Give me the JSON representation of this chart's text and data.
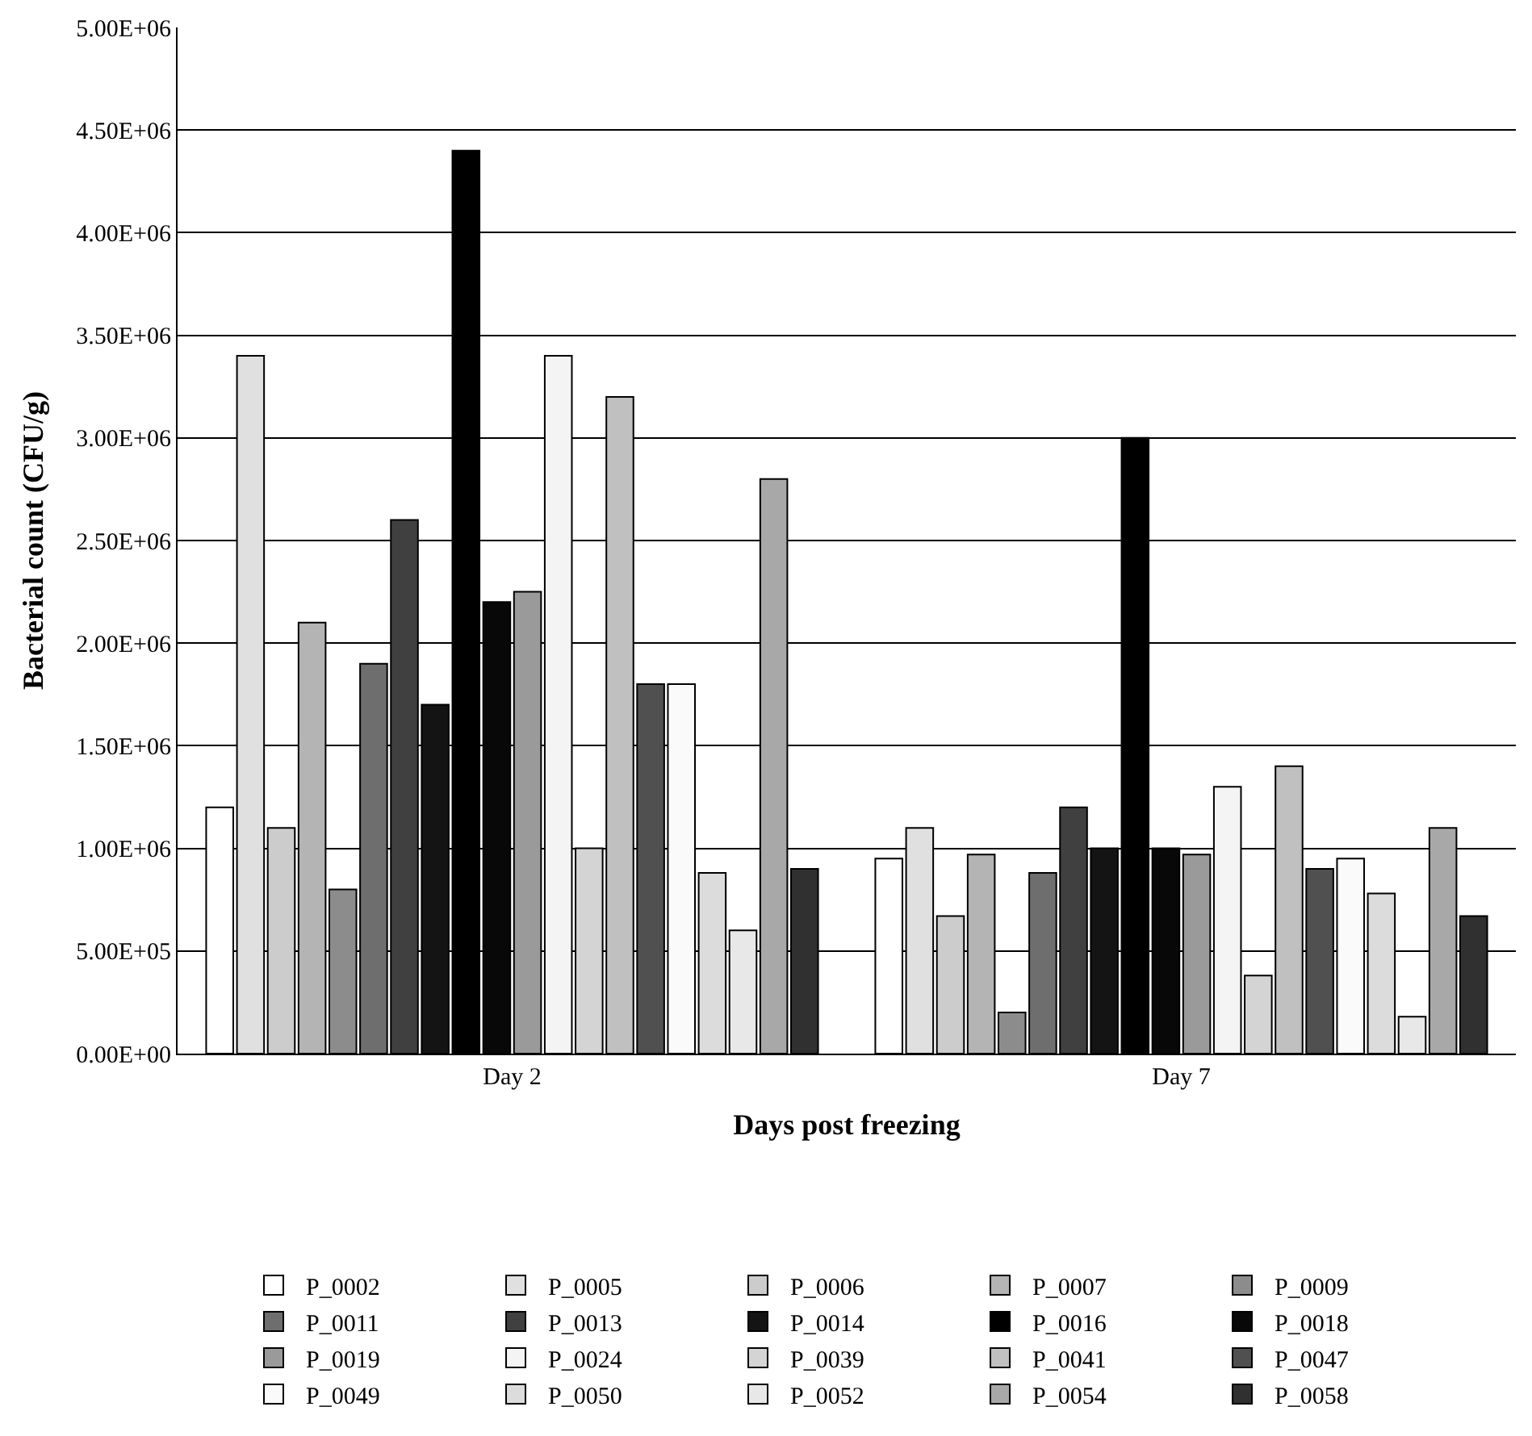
{
  "chart_data": {
    "type": "bar",
    "xlabel": "Days post freezing",
    "ylabel": "Bacterial count (CFU/g)",
    "categories": [
      "Day 2",
      "Day 7"
    ],
    "series": [
      {
        "name": "P_0002",
        "color": "#ffffff",
        "values": [
          1200000,
          950000
        ]
      },
      {
        "name": "P_0005",
        "color": "#e0e0e0",
        "values": [
          3400000,
          1100000
        ]
      },
      {
        "name": "P_0006",
        "color": "#cccccc",
        "values": [
          1100000,
          670000
        ]
      },
      {
        "name": "P_0007",
        "color": "#b4b4b4",
        "values": [
          2100000,
          970000
        ]
      },
      {
        "name": "P_0009",
        "color": "#8c8c8c",
        "values": [
          800000,
          200000
        ]
      },
      {
        "name": "P_0011",
        "color": "#6e6e6e",
        "values": [
          1900000,
          880000
        ]
      },
      {
        "name": "P_0013",
        "color": "#404040",
        "values": [
          2600000,
          1200000
        ]
      },
      {
        "name": "P_0014",
        "color": "#141414",
        "values": [
          1700000,
          1000000
        ]
      },
      {
        "name": "P_0016",
        "color": "#000000",
        "values": [
          4400000,
          3000000
        ]
      },
      {
        "name": "P_0018",
        "color": "#080808",
        "values": [
          2200000,
          1000000
        ]
      },
      {
        "name": "P_0019",
        "color": "#9a9a9a",
        "values": [
          2250000,
          970000
        ]
      },
      {
        "name": "P_0024",
        "color": "#f4f4f4",
        "values": [
          3400000,
          1300000
        ]
      },
      {
        "name": "P_0039",
        "color": "#d4d4d4",
        "values": [
          1000000,
          380000
        ]
      },
      {
        "name": "P_0041",
        "color": "#c0c0c0",
        "values": [
          3200000,
          1400000
        ]
      },
      {
        "name": "P_0047",
        "color": "#505050",
        "values": [
          1800000,
          900000
        ]
      },
      {
        "name": "P_0049",
        "color": "#fafafa",
        "values": [
          1800000,
          950000
        ]
      },
      {
        "name": "P_0050",
        "color": "#dcdcdc",
        "values": [
          880000,
          780000
        ]
      },
      {
        "name": "P_0052",
        "color": "#e8e8e8",
        "values": [
          600000,
          180000
        ]
      },
      {
        "name": "P_0054",
        "color": "#a8a8a8",
        "values": [
          2800000,
          1100000
        ]
      },
      {
        "name": "P_0058",
        "color": "#303030",
        "values": [
          900000,
          670000
        ]
      }
    ],
    "ylim": [
      0,
      5000000
    ],
    "yticks": [
      {
        "value": 0,
        "label": "0.00E+00"
      },
      {
        "value": 500000,
        "label": "5.00E+05"
      },
      {
        "value": 1000000,
        "label": "1.00E+06"
      },
      {
        "value": 1500000,
        "label": "1.50E+06"
      },
      {
        "value": 2000000,
        "label": "2.00E+06"
      },
      {
        "value": 2500000,
        "label": "2.50E+06"
      },
      {
        "value": 3000000,
        "label": "3.00E+06"
      },
      {
        "value": 3500000,
        "label": "3.50E+06"
      },
      {
        "value": 4000000,
        "label": "4.00E+06"
      },
      {
        "value": 4500000,
        "label": "4.50E+06"
      },
      {
        "value": 5000000,
        "label": "5.00E+06"
      }
    ],
    "grid": "y",
    "legend": "bottom"
  }
}
